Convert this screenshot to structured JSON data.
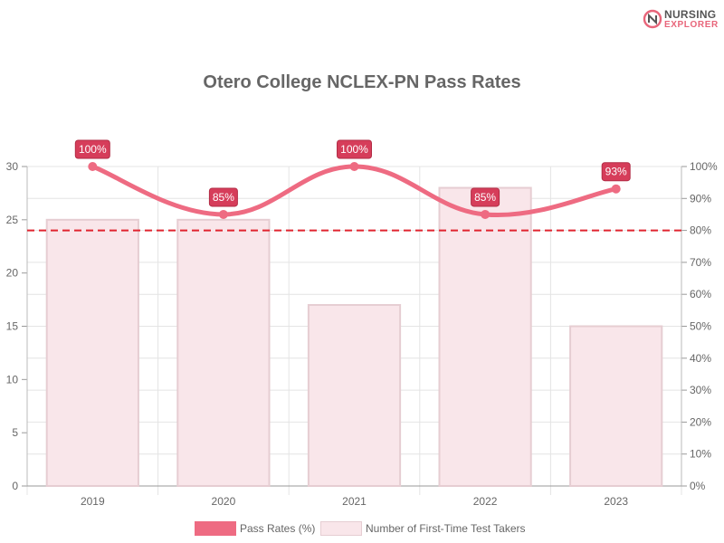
{
  "logo": {
    "line1": "NURSING",
    "line2": "EXPLORER"
  },
  "colors": {
    "line": "#ee6b82",
    "bar_fill": "#f9e6ea",
    "bar_stroke": "#e6cdd2",
    "label_bg": "#d63d5a",
    "threshold": "#e0242f",
    "grid": "#e4e4e4",
    "text": "#666666"
  },
  "chart_data": {
    "type": "bar",
    "title": "Otero College NCLEX-PN Pass Rates",
    "categories": [
      "2019",
      "2020",
      "2021",
      "2022",
      "2023"
    ],
    "series": [
      {
        "name": "Number of First-Time Test Takers",
        "type": "bar",
        "axis": "left",
        "values": [
          25,
          25,
          17,
          28,
          15
        ]
      },
      {
        "name": "Pass Rates (%)",
        "type": "line",
        "axis": "right",
        "values": [
          100,
          85,
          100,
          85,
          93
        ],
        "labels": [
          "100%",
          "85%",
          "100%",
          "85%",
          "93%"
        ]
      }
    ],
    "threshold": 80,
    "y_left": {
      "min": 0,
      "max": 30,
      "ticks": [
        "0",
        "5",
        "10",
        "15",
        "20",
        "25",
        "30"
      ]
    },
    "y_right": {
      "min": 0,
      "max": 100,
      "ticks": [
        "0%",
        "10%",
        "20%",
        "30%",
        "40%",
        "50%",
        "60%",
        "70%",
        "80%",
        "90%",
        "100%"
      ]
    },
    "grid": true,
    "legend_position": "bottom"
  }
}
